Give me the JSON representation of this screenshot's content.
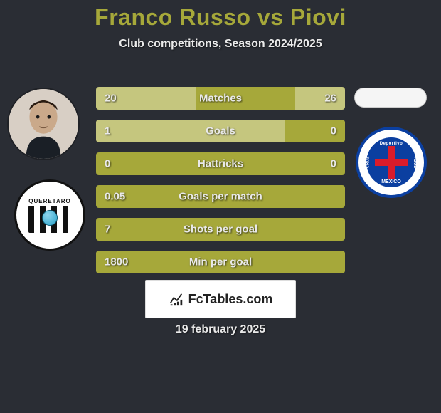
{
  "title": "Franco Russo vs Piovi",
  "subtitle": "Club competitions, Season 2024/2025",
  "date": "19 february 2025",
  "brand": "FcTables.com",
  "colors": {
    "background": "#2a2d34",
    "bar_base": "#a6a83a",
    "bar_highlight": "rgba(255,255,255,0.35)",
    "text": "#e9e9e9",
    "title": "#a6a83a"
  },
  "player_left": {
    "name": "Franco Russo",
    "club_name": "Querétaro",
    "club_text": "QUERETARO"
  },
  "player_right": {
    "name": "Piovi",
    "club_name": "Cruz Azul",
    "club_top": "Deportivo",
    "club_mid_left": "CRUZ",
    "club_mid_right": "AZUL",
    "club_bottom": "MEXICO"
  },
  "bars": [
    {
      "label": "Matches",
      "left_val": "20",
      "right_val": "26",
      "left_pct": 40,
      "right_pct": 20,
      "mode": "both"
    },
    {
      "label": "Goals",
      "left_val": "1",
      "right_val": "0",
      "left_pct": 76,
      "right_pct": 0,
      "mode": "left"
    },
    {
      "label": "Hattricks",
      "left_val": "0",
      "right_val": "0",
      "left_pct": 0,
      "right_pct": 0,
      "mode": "none"
    },
    {
      "label": "Goals per match",
      "left_val": "0.05",
      "right_val": "",
      "left_pct": 100,
      "right_pct": 0,
      "mode": "leftval"
    },
    {
      "label": "Shots per goal",
      "left_val": "7",
      "right_val": "",
      "left_pct": 100,
      "right_pct": 0,
      "mode": "leftval"
    },
    {
      "label": "Min per goal",
      "left_val": "1800",
      "right_val": "",
      "left_pct": 100,
      "right_pct": 0,
      "mode": "leftval"
    }
  ]
}
